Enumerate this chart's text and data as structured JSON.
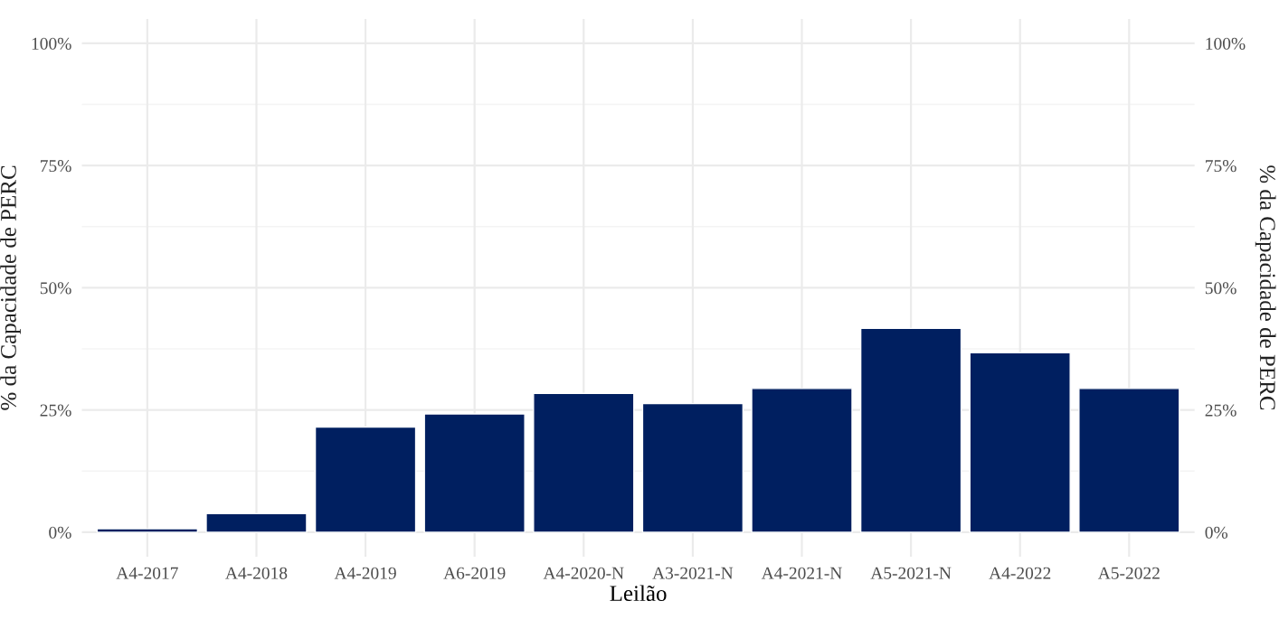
{
  "chart_data": {
    "type": "bar",
    "xlabel": "Leilão",
    "ylabel": "% da Capacidade de PERC",
    "y2label": "% da Capacidade de PERC",
    "categories": [
      "A4-2017",
      "A4-2018",
      "A4-2019",
      "A6-2019",
      "A4-2020-N",
      "A3-2021-N",
      "A4-2021-N",
      "A5-2021-N",
      "A4-2022",
      "A5-2022"
    ],
    "values": [
      0.7,
      3.8,
      21.5,
      24.2,
      28.4,
      26.3,
      29.4,
      41.7,
      36.7,
      29.4
    ],
    "color": "#001f60",
    "ylim": [
      -5,
      105
    ],
    "yticks": [
      {
        "value": 0,
        "label": "0%"
      },
      {
        "value": 25,
        "label": "25%"
      },
      {
        "value": 50,
        "label": "50%"
      },
      {
        "value": 75,
        "label": "75%"
      },
      {
        "value": 100,
        "label": "100%"
      }
    ],
    "y2lim": [
      -5,
      105
    ],
    "y2ticks": [
      {
        "value": 0,
        "label": "0%"
      },
      {
        "value": 25,
        "label": "25%"
      },
      {
        "value": 50,
        "label": "50%"
      },
      {
        "value": 75,
        "label": "75%"
      },
      {
        "value": 100,
        "label": "100%"
      }
    ],
    "grid": true
  }
}
